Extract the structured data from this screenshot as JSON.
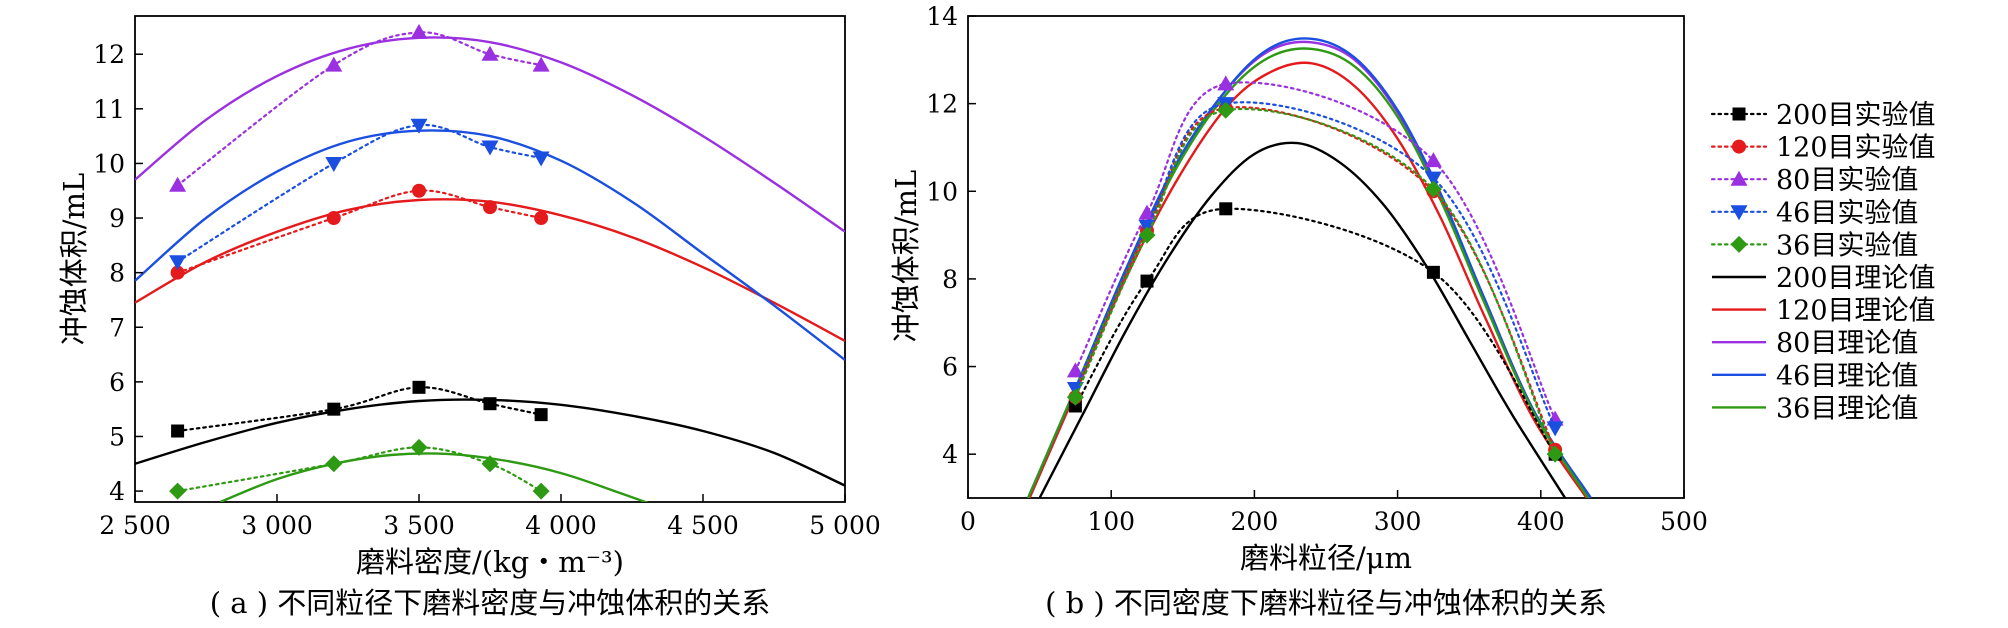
{
  "figure": {
    "caption_a": "( a ) 不同粒径下磨料密度与冲蚀体积的关系",
    "caption_b": "( b ) 不同密度下磨料粒径与冲蚀体积的关系"
  },
  "colors": {
    "200": "#000000",
    "120": "#e41a1c",
    "80": "#9b30e0",
    "46": "#1a4fe0",
    "36": "#2e9a14"
  },
  "chart_data": [
    {
      "type": "line",
      "xlabel": "磨料密度/(kg・m⁻³)",
      "ylabel": "冲蚀体积/mL",
      "xlim": [
        2500,
        5000
      ],
      "ylim": [
        3.8,
        12.7
      ],
      "xticks": [
        2500,
        3000,
        3500,
        4000,
        4500,
        5000
      ],
      "xtick_labels": [
        "2 500",
        "3 000",
        "3 500",
        "4 000",
        "4 500",
        "5 000"
      ],
      "yticks": [
        4,
        5,
        6,
        7,
        8,
        9,
        10,
        11,
        12
      ],
      "ytick_labels": [
        "4",
        "5",
        "6",
        "7",
        "8",
        "9",
        "10",
        "11",
        "12"
      ],
      "experimental": [
        {
          "size": "200",
          "marker": "square",
          "x": [
            2650,
            3200,
            3500,
            3750,
            3930
          ],
          "y": [
            5.1,
            5.5,
            5.9,
            5.6,
            5.4
          ]
        },
        {
          "size": "120",
          "marker": "circle",
          "x": [
            2650,
            3200,
            3500,
            3750,
            3930
          ],
          "y": [
            8.0,
            9.0,
            9.5,
            9.2,
            9.0
          ]
        },
        {
          "size": "80",
          "marker": "triangle-up",
          "x": [
            2650,
            3200,
            3500,
            3750,
            3930
          ],
          "y": [
            9.6,
            11.8,
            12.4,
            12.0,
            11.8
          ]
        },
        {
          "size": "46",
          "marker": "triangle-down",
          "x": [
            2650,
            3200,
            3500,
            3750,
            3930
          ],
          "y": [
            8.2,
            10.0,
            10.7,
            10.3,
            10.1
          ]
        },
        {
          "size": "36",
          "marker": "diamond",
          "x": [
            2650,
            3200,
            3500,
            3750,
            3930
          ],
          "y": [
            4.0,
            4.5,
            4.8,
            4.5,
            4.0
          ]
        }
      ],
      "theoretical": [
        {
          "size": "200",
          "x": [
            2500,
            2750,
            3000,
            3250,
            3500,
            3750,
            4000,
            4250,
            4500,
            4750,
            5000
          ],
          "y": [
            4.5,
            4.9,
            5.25,
            5.5,
            5.65,
            5.67,
            5.58,
            5.38,
            5.1,
            4.7,
            4.1
          ]
        },
        {
          "size": "120",
          "x": [
            2500,
            2750,
            3000,
            3250,
            3500,
            3750,
            4000,
            4250,
            4500,
            4750,
            5000
          ],
          "y": [
            7.45,
            8.2,
            8.75,
            9.15,
            9.33,
            9.3,
            9.05,
            8.65,
            8.1,
            7.45,
            6.75
          ]
        },
        {
          "size": "80",
          "x": [
            2500,
            2750,
            3000,
            3250,
            3500,
            3750,
            4000,
            4250,
            4500,
            4750,
            5000
          ],
          "y": [
            9.7,
            10.8,
            11.6,
            12.1,
            12.3,
            12.22,
            11.85,
            11.25,
            10.5,
            9.65,
            8.75
          ]
        },
        {
          "size": "46",
          "x": [
            2500,
            2750,
            3000,
            3250,
            3500,
            3750,
            4000,
            4250,
            4500,
            4750,
            5000
          ],
          "y": [
            7.85,
            9.0,
            9.85,
            10.4,
            10.6,
            10.5,
            10.05,
            9.3,
            8.35,
            7.4,
            6.4
          ]
        },
        {
          "size": "36",
          "x": [
            2800,
            3000,
            3200,
            3400,
            3600,
            3800,
            4000,
            4200,
            4350
          ],
          "y": [
            3.8,
            4.22,
            4.5,
            4.66,
            4.68,
            4.56,
            4.33,
            3.98,
            3.7
          ]
        }
      ]
    },
    {
      "type": "line",
      "xlabel": "磨料粒径/μm",
      "ylabel": "冲蚀体积/mL",
      "xlim": [
        0,
        500
      ],
      "ylim": [
        3,
        14
      ],
      "xticks": [
        0,
        100,
        200,
        300,
        400,
        500
      ],
      "xtick_labels": [
        "0",
        "100",
        "200",
        "300",
        "400",
        "500"
      ],
      "yticks": [
        4,
        6,
        8,
        10,
        12,
        14
      ],
      "ytick_labels": [
        "4",
        "6",
        "8",
        "10",
        "12",
        "14"
      ],
      "legend_position": "right",
      "experimental": [
        {
          "size": "200",
          "label": "200目实验值",
          "marker": "square",
          "x": [
            75,
            125,
            180,
            325,
            410
          ],
          "y": [
            5.1,
            7.95,
            9.6,
            8.15,
            4.0
          ]
        },
        {
          "size": "120",
          "label": "120目实验值",
          "marker": "circle",
          "x": [
            75,
            125,
            180,
            325,
            410
          ],
          "y": [
            5.3,
            9.1,
            11.9,
            10.0,
            4.1
          ]
        },
        {
          "size": "80",
          "label": "80目实验值",
          "marker": "triangle-up",
          "x": [
            75,
            125,
            180,
            325,
            410
          ],
          "y": [
            5.9,
            9.5,
            12.45,
            10.7,
            4.8
          ]
        },
        {
          "size": "46",
          "label": "46目实验值",
          "marker": "triangle-down",
          "x": [
            75,
            125,
            180,
            325,
            410
          ],
          "y": [
            5.5,
            9.2,
            12.0,
            10.3,
            4.6
          ]
        },
        {
          "size": "36",
          "label": "36目实验值",
          "marker": "diamond",
          "x": [
            75,
            125,
            180,
            325,
            410
          ],
          "y": [
            5.3,
            9.0,
            11.85,
            10.05,
            4.0
          ]
        }
      ],
      "theoretical": [
        {
          "size": "200",
          "label": "200目理论值",
          "x": [
            50,
            80,
            110,
            140,
            170,
            200,
            230,
            260,
            290,
            320,
            350,
            380,
            417
          ],
          "y": [
            3.0,
            4.9,
            6.8,
            8.5,
            9.9,
            10.85,
            11.1,
            10.65,
            9.7,
            8.3,
            6.6,
            4.9,
            3.0
          ]
        },
        {
          "size": "120",
          "label": "120目理论值",
          "x": [
            43,
            75,
            110,
            145,
            180,
            210,
            240,
            270,
            300,
            330,
            360,
            395,
            432
          ],
          "y": [
            3.0,
            5.4,
            8.0,
            10.2,
            11.9,
            12.7,
            12.92,
            12.4,
            11.2,
            9.4,
            7.2,
            4.8,
            3.0
          ]
        },
        {
          "size": "80",
          "label": "80目理论值",
          "x": [
            42,
            75,
            110,
            145,
            180,
            210,
            240,
            270,
            300,
            330,
            360,
            395,
            434
          ],
          "y": [
            3.0,
            5.5,
            8.2,
            10.6,
            12.3,
            13.2,
            13.4,
            13.0,
            11.8,
            9.9,
            7.6,
            5.0,
            3.0
          ]
        },
        {
          "size": "46",
          "label": "46目理论值",
          "x": [
            42,
            75,
            110,
            145,
            180,
            210,
            240,
            270,
            300,
            330,
            360,
            395,
            435
          ],
          "y": [
            3.0,
            5.5,
            8.2,
            10.6,
            12.3,
            13.25,
            13.48,
            13.05,
            11.85,
            9.95,
            7.6,
            5.0,
            3.0
          ]
        },
        {
          "size": "36",
          "label": "36目理论值",
          "x": [
            42,
            75,
            110,
            145,
            180,
            210,
            240,
            270,
            300,
            330,
            360,
            395,
            433
          ],
          "y": [
            3.0,
            5.5,
            8.1,
            10.5,
            12.2,
            13.05,
            13.25,
            12.85,
            11.7,
            9.8,
            7.5,
            4.95,
            3.0
          ]
        }
      ]
    }
  ]
}
